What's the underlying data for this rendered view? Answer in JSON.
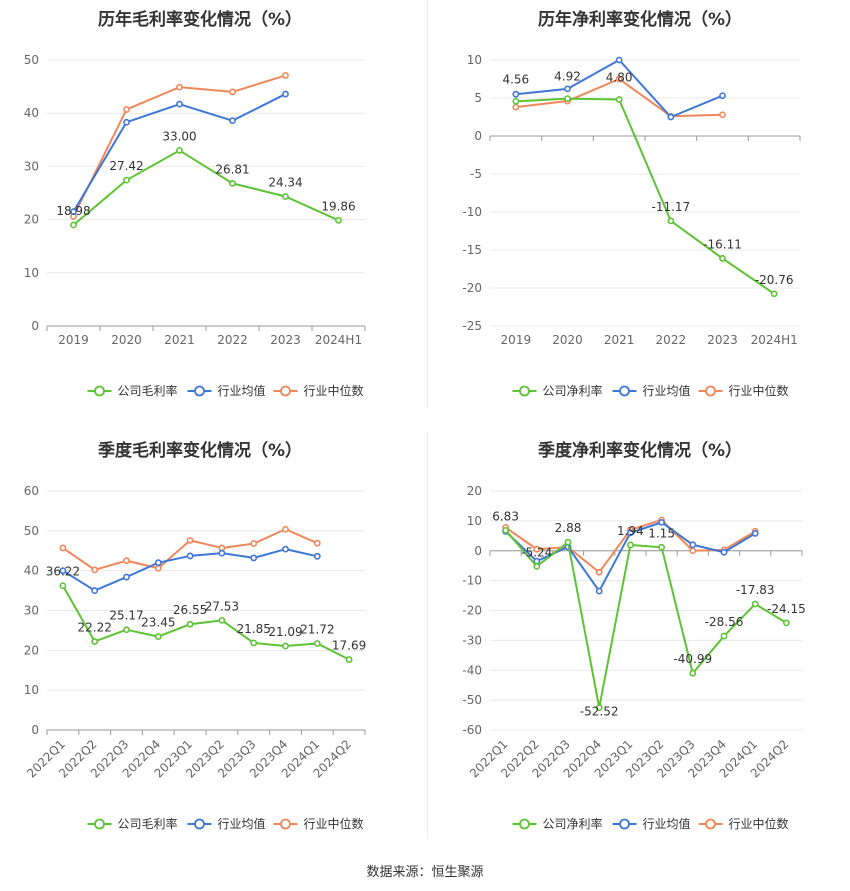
{
  "footer": "数据来源：恒生聚源",
  "colors": {
    "company": "#5ec235",
    "avg": "#3f77d8",
    "median": "#f0875a",
    "grid": "#e8e8e8",
    "axis": "#999999"
  },
  "chart_data": [
    {
      "type": "line",
      "title": "历年毛利率变化情况（%）",
      "categories": [
        "2019",
        "2020",
        "2021",
        "2022",
        "2023",
        "2024H1"
      ],
      "ylim": [
        0,
        50
      ],
      "yticks": [
        0,
        10,
        20,
        30,
        40,
        50
      ],
      "legend_position": "bottom",
      "grid": true,
      "series": [
        {
          "name": "公司毛利率",
          "key": "company",
          "values": [
            18.98,
            27.42,
            33.0,
            26.81,
            24.34,
            19.86
          ],
          "labels": [
            "18.98",
            "27.42",
            "33.00",
            "26.81",
            "24.34",
            "19.86"
          ]
        },
        {
          "name": "行业均值",
          "key": "avg",
          "values": [
            21.5,
            38.3,
            41.7,
            38.6,
            43.6,
            null
          ]
        },
        {
          "name": "行业中位数",
          "key": "median",
          "values": [
            20.6,
            40.7,
            44.9,
            44.0,
            47.1,
            null
          ]
        }
      ]
    },
    {
      "type": "line",
      "title": "历年净利率变化情况（%）",
      "categories": [
        "2019",
        "2020",
        "2021",
        "2022",
        "2023",
        "2024H1"
      ],
      "ylim": [
        -25,
        10
      ],
      "yticks": [
        -25,
        -20,
        -15,
        -10,
        -5,
        0,
        5,
        10
      ],
      "legend_position": "bottom",
      "grid": true,
      "series": [
        {
          "name": "公司净利率",
          "key": "company",
          "values": [
            4.56,
            4.92,
            4.8,
            -11.17,
            -16.11,
            -20.76
          ],
          "labels": [
            "4.56",
            "4.92",
            "4.80",
            "-11.17",
            "-16.11",
            "-20.76"
          ]
        },
        {
          "name": "行业均值",
          "key": "avg",
          "values": [
            5.5,
            6.2,
            10.0,
            2.5,
            5.3,
            null
          ]
        },
        {
          "name": "行业中位数",
          "key": "median",
          "values": [
            3.8,
            4.6,
            7.5,
            2.6,
            2.8,
            null
          ]
        }
      ]
    },
    {
      "type": "line",
      "title": "季度毛利率变化情况（%）",
      "categories": [
        "2022Q1",
        "2022Q2",
        "2022Q3",
        "2022Q4",
        "2023Q1",
        "2023Q2",
        "2023Q3",
        "2023Q4",
        "2024Q1",
        "2024Q2"
      ],
      "ylim": [
        0,
        60
      ],
      "yticks": [
        0,
        10,
        20,
        30,
        40,
        50,
        60
      ],
      "legend_position": "bottom",
      "grid": true,
      "series": [
        {
          "name": "公司毛利率",
          "key": "company",
          "values": [
            36.22,
            22.22,
            25.17,
            23.45,
            26.55,
            27.53,
            21.85,
            21.09,
            21.72,
            17.69
          ],
          "labels": [
            "36.22",
            "22.22",
            "25.17",
            "23.45",
            "26.55",
            "27.53",
            "21.85",
            "21.09",
            "21.72",
            "17.69"
          ]
        },
        {
          "name": "行业均值",
          "key": "avg",
          "values": [
            40.0,
            35.0,
            38.4,
            42.0,
            43.7,
            44.4,
            43.2,
            45.4,
            43.6,
            null
          ]
        },
        {
          "name": "行业中位数",
          "key": "median",
          "values": [
            45.7,
            40.2,
            42.5,
            40.6,
            47.6,
            45.7,
            46.8,
            50.4,
            46.9,
            null
          ]
        }
      ]
    },
    {
      "type": "line",
      "title": "季度净利率变化情况（%）",
      "categories": [
        "2022Q1",
        "2022Q2",
        "2022Q3",
        "2022Q4",
        "2023Q1",
        "2023Q2",
        "2023Q3",
        "2023Q4",
        "2024Q1",
        "2024Q2"
      ],
      "ylim": [
        -60,
        20
      ],
      "yticks": [
        -60,
        -50,
        -40,
        -30,
        -20,
        -10,
        0,
        10,
        20
      ],
      "legend_position": "bottom",
      "grid": true,
      "series": [
        {
          "name": "公司净利率",
          "key": "company",
          "values": [
            6.83,
            -5.24,
            2.88,
            -52.52,
            1.94,
            1.15,
            -40.99,
            -28.56,
            -17.83,
            -24.15
          ],
          "labels": [
            "6.83",
            "-5.24",
            "2.88",
            "-52.52",
            "1.94",
            "1.15",
            "-40.99",
            "-28.56",
            "-17.83",
            "-24.15"
          ]
        },
        {
          "name": "行业均值",
          "key": "avg",
          "values": [
            6.5,
            -3.5,
            1.3,
            -13.5,
            6.0,
            9.5,
            2.0,
            -0.5,
            5.8,
            null
          ]
        },
        {
          "name": "行业中位数",
          "key": "median",
          "values": [
            7.8,
            0.5,
            1.2,
            -7.2,
            7.0,
            10.3,
            0.0,
            0.3,
            6.5,
            null
          ]
        }
      ]
    }
  ]
}
